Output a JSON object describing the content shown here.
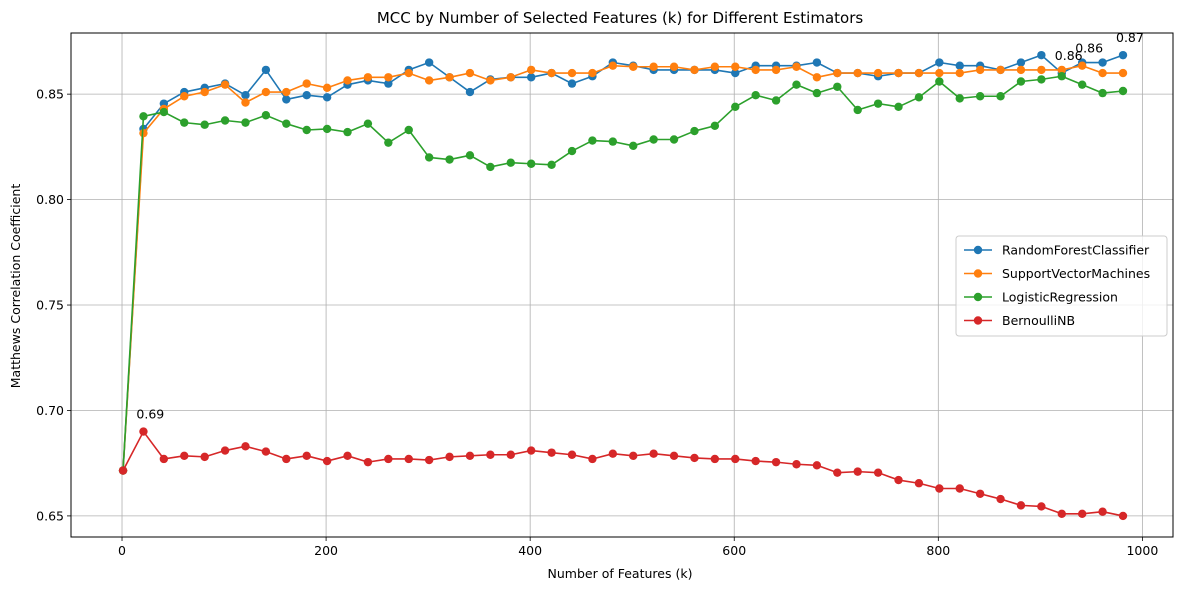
{
  "chart_data": {
    "type": "line",
    "title": "MCC by Number of Selected Features (k) for Different Estimators",
    "xlabel": "Number of Features (k)",
    "ylabel": "Matthews Correlation Coefficient",
    "xlim": [
      -50,
      1030
    ],
    "ylim": [
      0.64,
      0.879
    ],
    "xticks": [
      0,
      200,
      400,
      600,
      800,
      1000
    ],
    "yticks": [
      0.65,
      0.7,
      0.75,
      0.8,
      0.85
    ],
    "xtick_labels": [
      "0",
      "200",
      "400",
      "600",
      "800",
      "1000"
    ],
    "ytick_labels": [
      "0.65",
      "0.70",
      "0.75",
      "0.80",
      "0.85"
    ],
    "grid": true,
    "legend_position": "center-right",
    "x": [
      1,
      21,
      41,
      61,
      81,
      101,
      121,
      141,
      161,
      181,
      201,
      221,
      241,
      261,
      281,
      301,
      321,
      341,
      361,
      381,
      401,
      421,
      441,
      461,
      481,
      501,
      521,
      541,
      561,
      581,
      601,
      621,
      641,
      661,
      681,
      701,
      721,
      741,
      761,
      781,
      801,
      821,
      841,
      861,
      881,
      901,
      921,
      941,
      961,
      981
    ],
    "series": [
      {
        "name": "RandomForestClassifier",
        "color": "#1f77b4",
        "values": [
          0.6715,
          0.8335,
          0.8455,
          0.851,
          0.853,
          0.855,
          0.8495,
          0.8615,
          0.8475,
          0.8495,
          0.8485,
          0.8545,
          0.8565,
          0.855,
          0.8615,
          0.865,
          0.858,
          0.851,
          0.857,
          0.858,
          0.858,
          0.86,
          0.855,
          0.8585,
          0.865,
          0.8635,
          0.8615,
          0.8615,
          0.8615,
          0.8615,
          0.86,
          0.8635,
          0.8635,
          0.8635,
          0.865,
          0.86,
          0.86,
          0.8585,
          0.86,
          0.86,
          0.865,
          0.8635,
          0.8635,
          0.8615,
          0.865,
          0.8685,
          0.86,
          0.865,
          0.865,
          0.8685
        ]
      },
      {
        "name": "SupportVectorMachines",
        "color": "#ff7f0e",
        "values": [
          0.6715,
          0.8315,
          0.843,
          0.849,
          0.851,
          0.8545,
          0.846,
          0.851,
          0.851,
          0.855,
          0.853,
          0.8565,
          0.858,
          0.858,
          0.86,
          0.8565,
          0.858,
          0.86,
          0.8565,
          0.858,
          0.8615,
          0.86,
          0.86,
          0.86,
          0.8635,
          0.863,
          0.863,
          0.863,
          0.8615,
          0.863,
          0.863,
          0.8615,
          0.8615,
          0.863,
          0.858,
          0.86,
          0.86,
          0.86,
          0.86,
          0.86,
          0.86,
          0.86,
          0.8615,
          0.8615,
          0.8615,
          0.8615,
          0.8615,
          0.8635,
          0.86,
          0.86
        ]
      },
      {
        "name": "LogisticRegression",
        "color": "#2ca02c",
        "values": [
          0.6715,
          0.8395,
          0.8415,
          0.8365,
          0.8355,
          0.8375,
          0.8365,
          0.84,
          0.836,
          0.833,
          0.8335,
          0.832,
          0.836,
          0.827,
          0.833,
          0.82,
          0.819,
          0.821,
          0.8155,
          0.8175,
          0.817,
          0.8165,
          0.823,
          0.828,
          0.8275,
          0.8255,
          0.8285,
          0.8285,
          0.8325,
          0.835,
          0.844,
          0.8495,
          0.847,
          0.8545,
          0.8505,
          0.8535,
          0.8425,
          0.8455,
          0.844,
          0.8485,
          0.856,
          0.848,
          0.849,
          0.849,
          0.856,
          0.857,
          0.8585,
          0.8545,
          0.8505,
          0.8515
        ]
      },
      {
        "name": "BernoulliNB",
        "color": "#d62728",
        "values": [
          0.6715,
          0.69,
          0.677,
          0.6785,
          0.678,
          0.681,
          0.683,
          0.6805,
          0.677,
          0.6785,
          0.676,
          0.6785,
          0.6755,
          0.677,
          0.677,
          0.6765,
          0.678,
          0.6785,
          0.679,
          0.679,
          0.681,
          0.68,
          0.679,
          0.677,
          0.6795,
          0.6785,
          0.6795,
          0.6785,
          0.6775,
          0.677,
          0.677,
          0.676,
          0.6755,
          0.6745,
          0.674,
          0.6705,
          0.671,
          0.6705,
          0.667,
          0.6655,
          0.663,
          0.663,
          0.6605,
          0.658,
          0.655,
          0.6545,
          0.651,
          0.651,
          0.652,
          0.65
        ]
      }
    ],
    "annotations": [
      {
        "text": "0.69",
        "x": 21,
        "y": 0.69
      },
      {
        "text": "0.86",
        "x": 921,
        "y": 0.86
      },
      {
        "text": "0.86",
        "x": 941,
        "y": 0.8635
      },
      {
        "text": "0.87",
        "x": 981,
        "y": 0.8685
      }
    ]
  }
}
